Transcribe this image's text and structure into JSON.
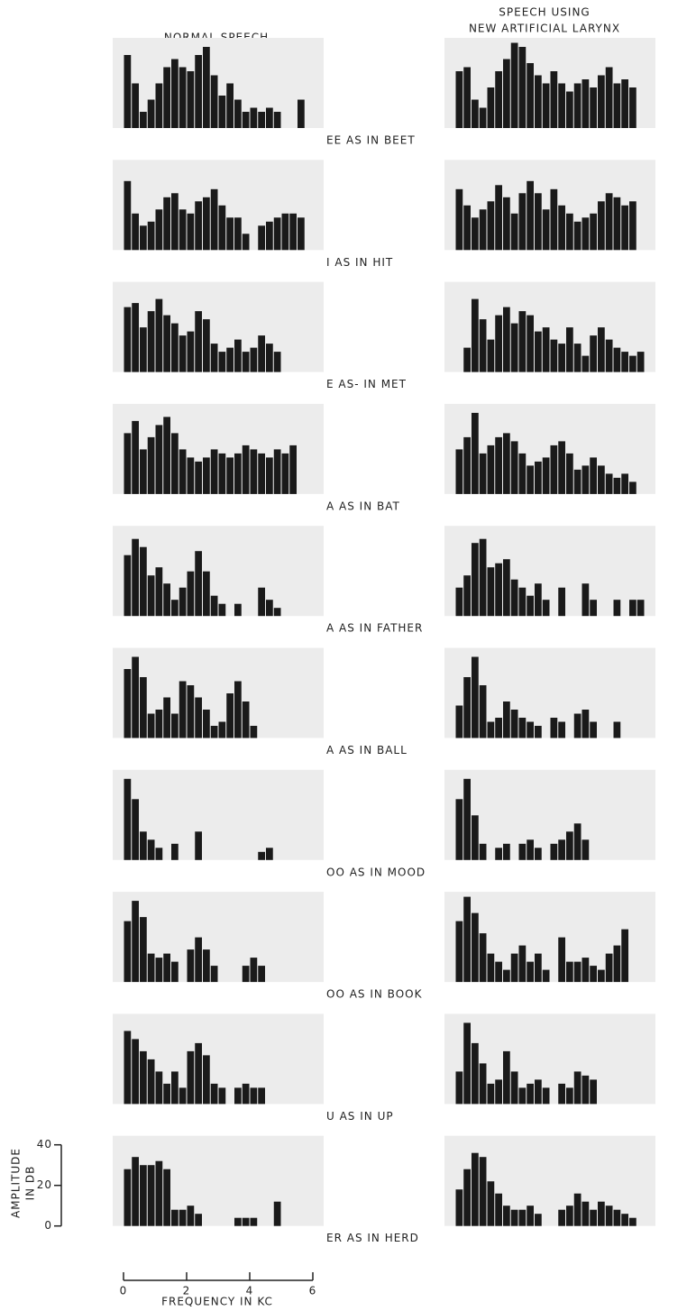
{
  "chart_data": {
    "type": "bar",
    "left_title": "NORMAL SPEECH",
    "right_title": [
      "SPEECH USING",
      "NEW ARTIFICIAL LARYNX"
    ],
    "xlabel": "FREQUENCY IN KC",
    "ylabel": [
      "AMPLITUDE",
      "IN DB"
    ],
    "xlim": [
      0,
      6
    ],
    "xticks": [
      0,
      2,
      4,
      6
    ],
    "ylim": [
      0,
      40
    ],
    "yticks": [
      0,
      20,
      40
    ],
    "color": "#1a1a1a",
    "bins": [
      0,
      0.25,
      0.5,
      0.75,
      1,
      1.25,
      1.5,
      1.75,
      2,
      2.25,
      2.5,
      2.75,
      3,
      3.25,
      3.5,
      3.75,
      4,
      4.25,
      4.5,
      4.75,
      5,
      5.25,
      5.5,
      5.75,
      6
    ],
    "panels": [
      {
        "label": "EE AS IN BEET",
        "series": [
          {
            "values": [
              36,
              22,
              8,
              14,
              22,
              30,
              34,
              30,
              28,
              36,
              40,
              26,
              16,
              22,
              14,
              8,
              10,
              8,
              10,
              8,
              0,
              0,
              14,
              0
            ]
          },
          {
            "values": [
              28,
              30,
              14,
              10,
              20,
              28,
              34,
              42,
              40,
              32,
              26,
              22,
              28,
              22,
              18,
              22,
              24,
              20,
              26,
              30,
              22,
              24,
              20,
              0
            ]
          }
        ]
      },
      {
        "label": "I AS IN HIT",
        "series": [
          {
            "values": [
              34,
              18,
              12,
              14,
              20,
              26,
              28,
              20,
              18,
              24,
              26,
              30,
              22,
              16,
              16,
              8,
              0,
              12,
              14,
              16,
              18,
              18,
              16,
              0
            ]
          },
          {
            "values": [
              30,
              22,
              16,
              20,
              24,
              32,
              26,
              18,
              28,
              34,
              28,
              20,
              30,
              22,
              18,
              14,
              16,
              18,
              24,
              28,
              26,
              22,
              24,
              0
            ]
          }
        ]
      },
      {
        "label": "E AS- IN MET",
        "series": [
          {
            "values": [
              32,
              34,
              22,
              30,
              36,
              28,
              24,
              18,
              20,
              30,
              26,
              14,
              10,
              12,
              16,
              10,
              12,
              18,
              14,
              10,
              0,
              0,
              0,
              0
            ]
          },
          {
            "values": [
              0,
              12,
              36,
              26,
              16,
              28,
              32,
              24,
              30,
              28,
              20,
              22,
              16,
              14,
              22,
              14,
              8,
              18,
              22,
              16,
              12,
              10,
              8,
              10
            ]
          }
        ]
      },
      {
        "label": "A AS IN BAT",
        "series": [
          {
            "values": [
              30,
              36,
              22,
              28,
              34,
              38,
              30,
              22,
              18,
              16,
              18,
              22,
              20,
              18,
              20,
              24,
              22,
              20,
              18,
              22,
              20,
              24,
              0,
              0
            ]
          },
          {
            "values": [
              22,
              28,
              40,
              20,
              24,
              28,
              30,
              26,
              20,
              14,
              16,
              18,
              24,
              26,
              20,
              12,
              14,
              18,
              14,
              10,
              8,
              10,
              6,
              0
            ]
          }
        ]
      },
      {
        "label": "A AS IN FATHER",
        "series": [
          {
            "values": [
              30,
              38,
              34,
              20,
              24,
              16,
              8,
              14,
              22,
              32,
              22,
              10,
              6,
              0,
              6,
              0,
              0,
              14,
              8,
              4,
              0,
              0,
              0,
              0
            ]
          },
          {
            "values": [
              14,
              20,
              36,
              38,
              24,
              26,
              28,
              18,
              14,
              10,
              16,
              8,
              0,
              14,
              0,
              0,
              16,
              8,
              0,
              0,
              8,
              0,
              8,
              8
            ]
          }
        ]
      },
      {
        "label": "A AS IN BALL",
        "series": [
          {
            "values": [
              34,
              40,
              30,
              12,
              14,
              20,
              12,
              28,
              26,
              20,
              14,
              6,
              8,
              22,
              28,
              18,
              6,
              0,
              0,
              0,
              0,
              0,
              0,
              0
            ]
          },
          {
            "values": [
              16,
              30,
              40,
              26,
              8,
              10,
              18,
              14,
              10,
              8,
              6,
              0,
              10,
              8,
              0,
              12,
              14,
              8,
              0,
              0,
              8,
              0,
              0,
              0
            ]
          }
        ]
      },
      {
        "label": "OO AS IN MOOD",
        "series": [
          {
            "values": [
              40,
              30,
              14,
              10,
              6,
              0,
              8,
              0,
              0,
              14,
              0,
              0,
              0,
              0,
              0,
              0,
              0,
              4,
              6,
              0,
              0,
              0,
              0,
              0
            ]
          },
          {
            "values": [
              30,
              40,
              22,
              8,
              0,
              6,
              8,
              0,
              8,
              10,
              6,
              0,
              8,
              10,
              14,
              18,
              10,
              0,
              0,
              0,
              0,
              0,
              0,
              0
            ]
          }
        ]
      },
      {
        "label": "OO AS IN BOOK",
        "series": [
          {
            "values": [
              30,
              40,
              32,
              14,
              12,
              14,
              10,
              0,
              16,
              22,
              16,
              8,
              0,
              0,
              0,
              8,
              12,
              8,
              0,
              0,
              0,
              0,
              0,
              0
            ]
          },
          {
            "values": [
              30,
              42,
              34,
              24,
              14,
              10,
              6,
              14,
              18,
              10,
              14,
              6,
              0,
              22,
              10,
              10,
              12,
              8,
              6,
              14,
              18,
              26,
              0,
              0
            ]
          }
        ]
      },
      {
        "label": "U AS IN UP",
        "series": [
          {
            "values": [
              36,
              32,
              26,
              22,
              16,
              10,
              16,
              8,
              26,
              30,
              24,
              10,
              8,
              0,
              8,
              10,
              8,
              8,
              0,
              0,
              0,
              0,
              0,
              0
            ]
          },
          {
            "values": [
              16,
              40,
              30,
              20,
              10,
              12,
              26,
              16,
              8,
              10,
              12,
              8,
              0,
              10,
              8,
              16,
              14,
              12,
              0,
              0,
              0,
              0,
              0,
              0
            ]
          }
        ]
      },
      {
        "label": "ER AS IN HERD",
        "series": [
          {
            "values": [
              28,
              34,
              30,
              30,
              32,
              28,
              8,
              8,
              10,
              6,
              0,
              0,
              0,
              0,
              4,
              4,
              4,
              0,
              0,
              12,
              0,
              0,
              0,
              0
            ]
          },
          {
            "values": [
              18,
              28,
              36,
              34,
              22,
              16,
              10,
              8,
              8,
              10,
              6,
              0,
              0,
              8,
              10,
              16,
              12,
              8,
              12,
              10,
              8,
              6,
              4,
              0
            ]
          }
        ]
      }
    ]
  }
}
